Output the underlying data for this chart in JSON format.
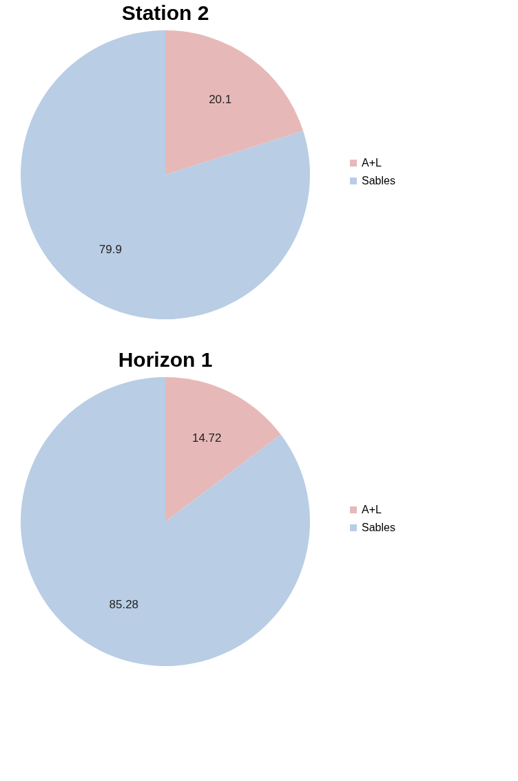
{
  "chart_data": [
    {
      "type": "pie",
      "title": "Station 2",
      "categories": [
        "A+L",
        "Sables"
      ],
      "values": [
        20.1,
        79.9
      ],
      "colors": [
        "#e6b9b8",
        "#b9cde5"
      ],
      "data_labels": true,
      "legend": "right"
    },
    {
      "type": "pie",
      "title": "Horizon 1",
      "categories": [
        "A+L",
        "Sables"
      ],
      "values": [
        14.72,
        85.28
      ],
      "colors": [
        "#e6b9b8",
        "#b9cde5"
      ],
      "data_labels": true,
      "legend": "right"
    }
  ]
}
